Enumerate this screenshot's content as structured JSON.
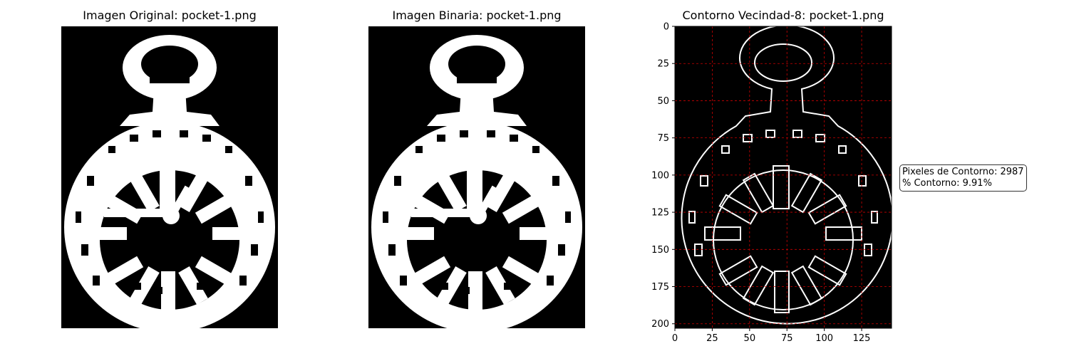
{
  "panels": [
    {
      "title": "Imagen Original: pocket-1.png",
      "kind": "image"
    },
    {
      "title": "Imagen Binaria: pocket-1.png",
      "kind": "image"
    },
    {
      "title": "Contorno Vecindad-8: pocket-1.png",
      "kind": "contour"
    }
  ],
  "stats": {
    "pixels_line": "Pixeles de Contorno: 2987",
    "percent_line": "% Contorno: 9.91%"
  },
  "colors": {
    "background": "#000000",
    "foreground": "#ffffff",
    "grid": "#cc0000"
  },
  "chart_data": [
    {
      "type": "image",
      "title": "Imagen Original: pocket-1.png",
      "axes": "off"
    },
    {
      "type": "image",
      "title": "Imagen Binaria: pocket-1.png",
      "axes": "off"
    },
    {
      "type": "image",
      "title": "Contorno Vecindad-8: pocket-1.png",
      "xlim": [
        0,
        145
      ],
      "ylim": [
        203,
        0
      ],
      "xticks": [
        0,
        25,
        50,
        75,
        100,
        125
      ],
      "yticks": [
        0,
        25,
        50,
        75,
        100,
        125,
        150,
        175,
        200
      ],
      "grid": true,
      "grid_style": "dashed red",
      "annotation": [
        "Pixeles de Contorno: 2987",
        "% Contorno: 9.91%"
      ],
      "contour_pixels": 2987,
      "contour_percent": 9.91
    }
  ]
}
